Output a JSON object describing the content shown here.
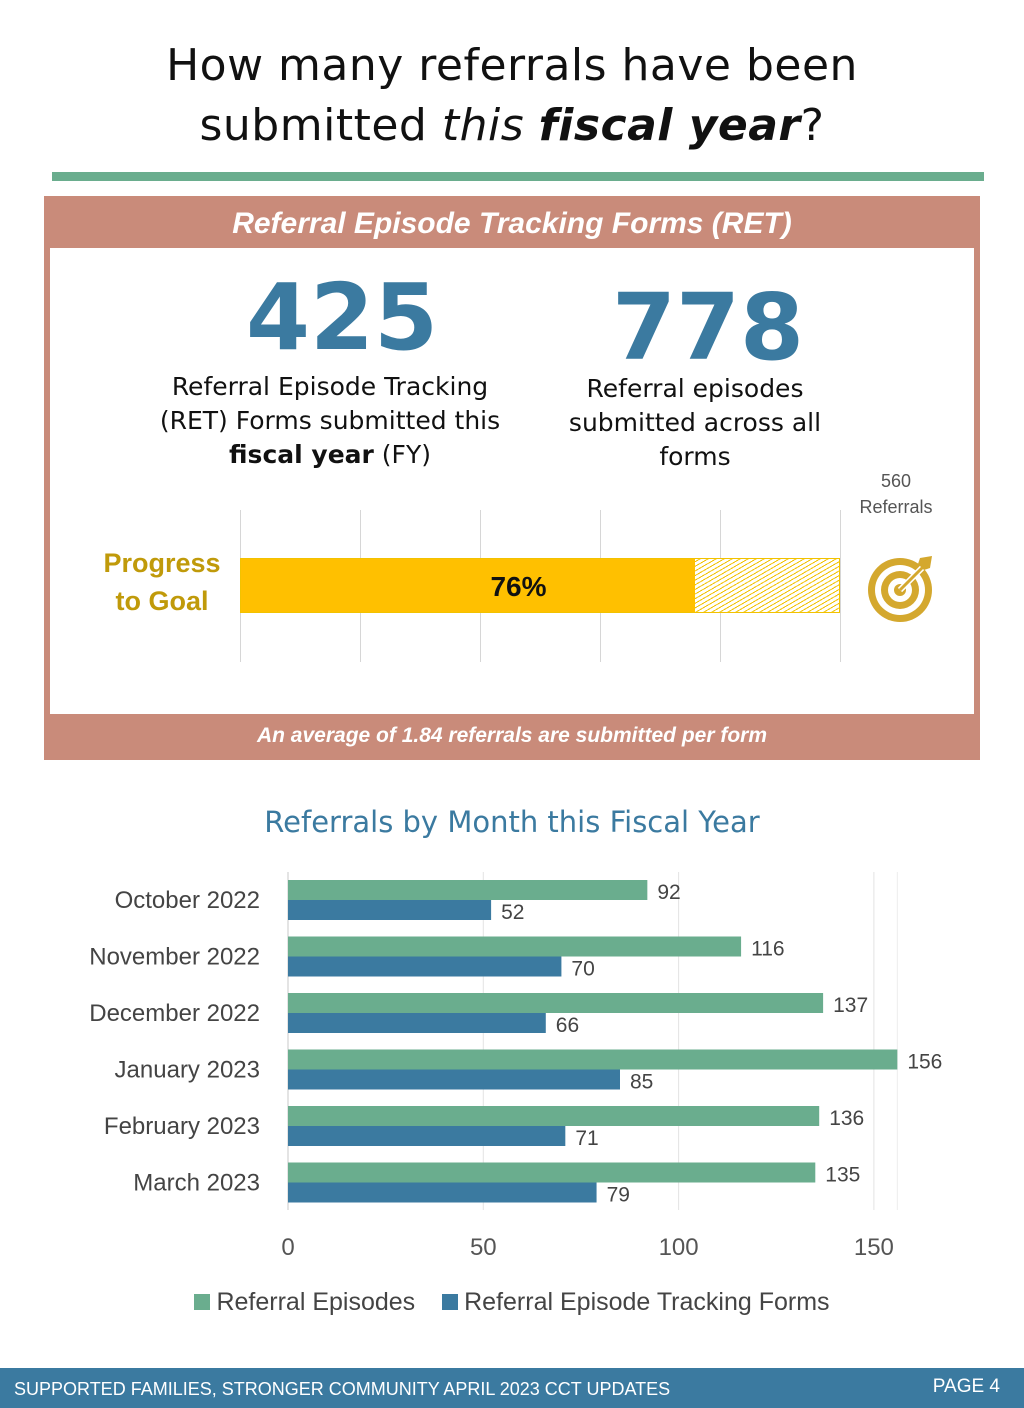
{
  "header": {
    "title_line1": "How many referrals have been",
    "title_line2_pre": "submitted ",
    "title_line2_italic": "this ",
    "title_line2_bold_italic": "fiscal year",
    "title_line2_post": "?"
  },
  "ret_panel": {
    "header": "Referral Episode Tracking Forms (RET)",
    "forms_count": "425",
    "forms_desc_line1": "Referral Episode Tracking",
    "forms_desc_line2": "(RET) Forms submitted this",
    "forms_desc_bold": "fiscal year",
    "forms_desc_tail": " (FY)",
    "episodes_count": "778",
    "episodes_desc_line1": "Referral episodes",
    "episodes_desc_line2": "submitted across all",
    "episodes_desc_line3": "forms",
    "progress_label_line1": "Progress",
    "progress_label_line2": "to Goal",
    "progress_value": 0.76,
    "progress_pct_label": "76%",
    "goal_line1": "560",
    "goal_line2": "Referrals",
    "goal_icon": "target-icon",
    "footer": "An average of 1.84 referrals are submitted per form"
  },
  "chart_data": {
    "type": "bar",
    "orientation": "horizontal",
    "title": "Referrals by Month this Fiscal Year",
    "categories": [
      "October 2022",
      "November 2022",
      "December 2022",
      "January 2023",
      "February 2023",
      "March 2023"
    ],
    "series": [
      {
        "name": "Referral Episodes",
        "color": "#6aad8e",
        "values": [
          92,
          116,
          137,
          156,
          136,
          135
        ]
      },
      {
        "name": "Referral Episode Tracking Forms",
        "color": "#3b7aa0",
        "values": [
          52,
          70,
          66,
          85,
          71,
          79
        ]
      }
    ],
    "xlim": [
      0,
      170
    ],
    "xticks": [
      0,
      50,
      100,
      150
    ],
    "xlabel": "",
    "ylabel": "",
    "grid": true,
    "legend": "bottom"
  },
  "footer": {
    "left": "SUPPORTED FAMILIES, STRONGER COMMUNITY APRIL 2023 CCT UPDATES",
    "right": "PAGE 4"
  }
}
